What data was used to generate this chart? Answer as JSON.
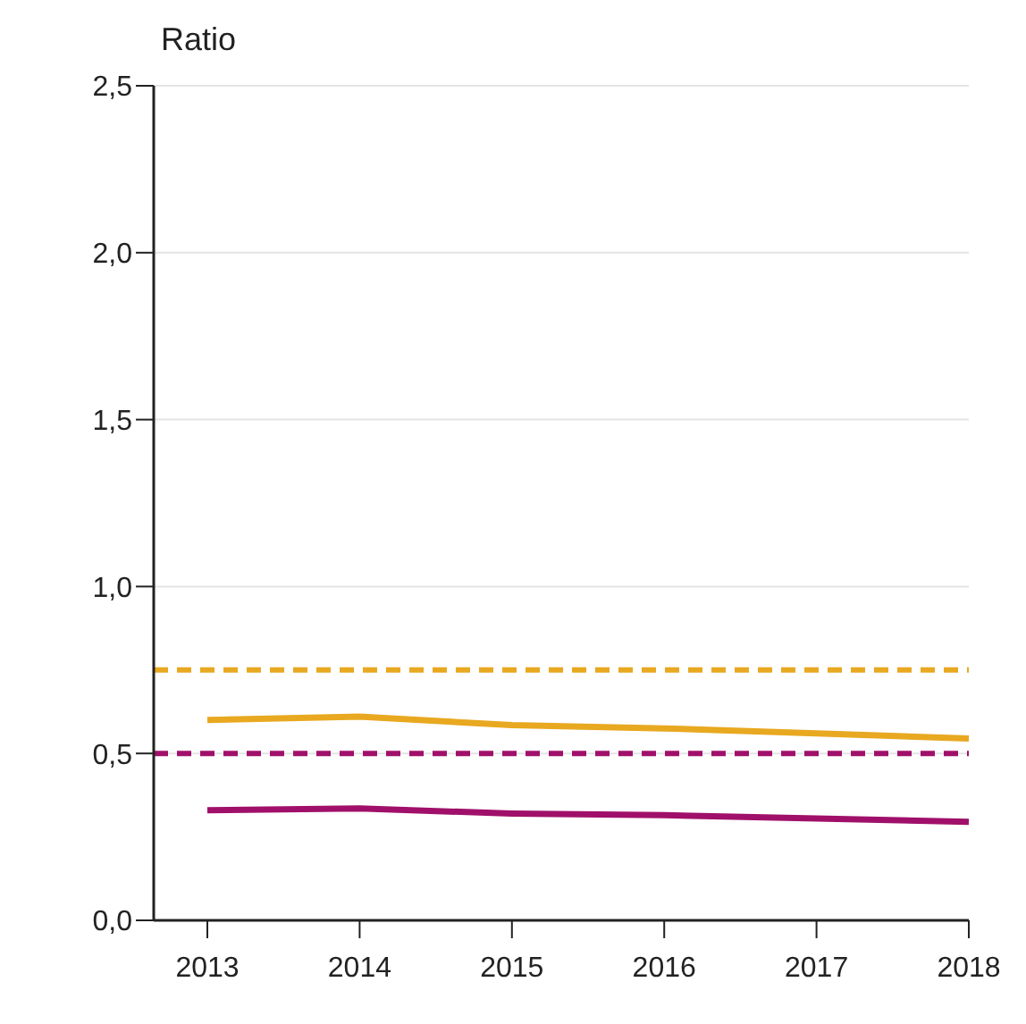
{
  "chart_data": {
    "type": "line",
    "ylabel": "Ratio",
    "categories": [
      "2013",
      "2014",
      "2015",
      "2016",
      "2017",
      "2018"
    ],
    "series": [
      {
        "color": "#e8a820",
        "values": [
          0.6,
          0.61,
          0.585,
          0.575,
          0.56,
          0.545
        ]
      },
      {
        "color": "#a0106a",
        "values": [
          0.33,
          0.335,
          0.32,
          0.315,
          0.305,
          0.295
        ]
      }
    ],
    "ref_lines": [
      {
        "axis": "y",
        "value": 0.75,
        "color": "#e8a820",
        "line_style": "dashed"
      },
      {
        "axis": "y",
        "value": 0.5,
        "color": "#a0106a",
        "line_style": "dashed"
      }
    ],
    "ylim": [
      0,
      2.5
    ],
    "yticks": [
      {
        "value": 0,
        "label": "0,0"
      },
      {
        "value": 0.5,
        "label": "0,5"
      },
      {
        "value": 1,
        "label": "1,0"
      },
      {
        "value": 1.5,
        "label": "1,5"
      },
      {
        "value": 2,
        "label": "2,0"
      },
      {
        "value": 2.5,
        "label": "2,5"
      }
    ],
    "grid": "y",
    "marker": "none",
    "line_style": "solid"
  }
}
